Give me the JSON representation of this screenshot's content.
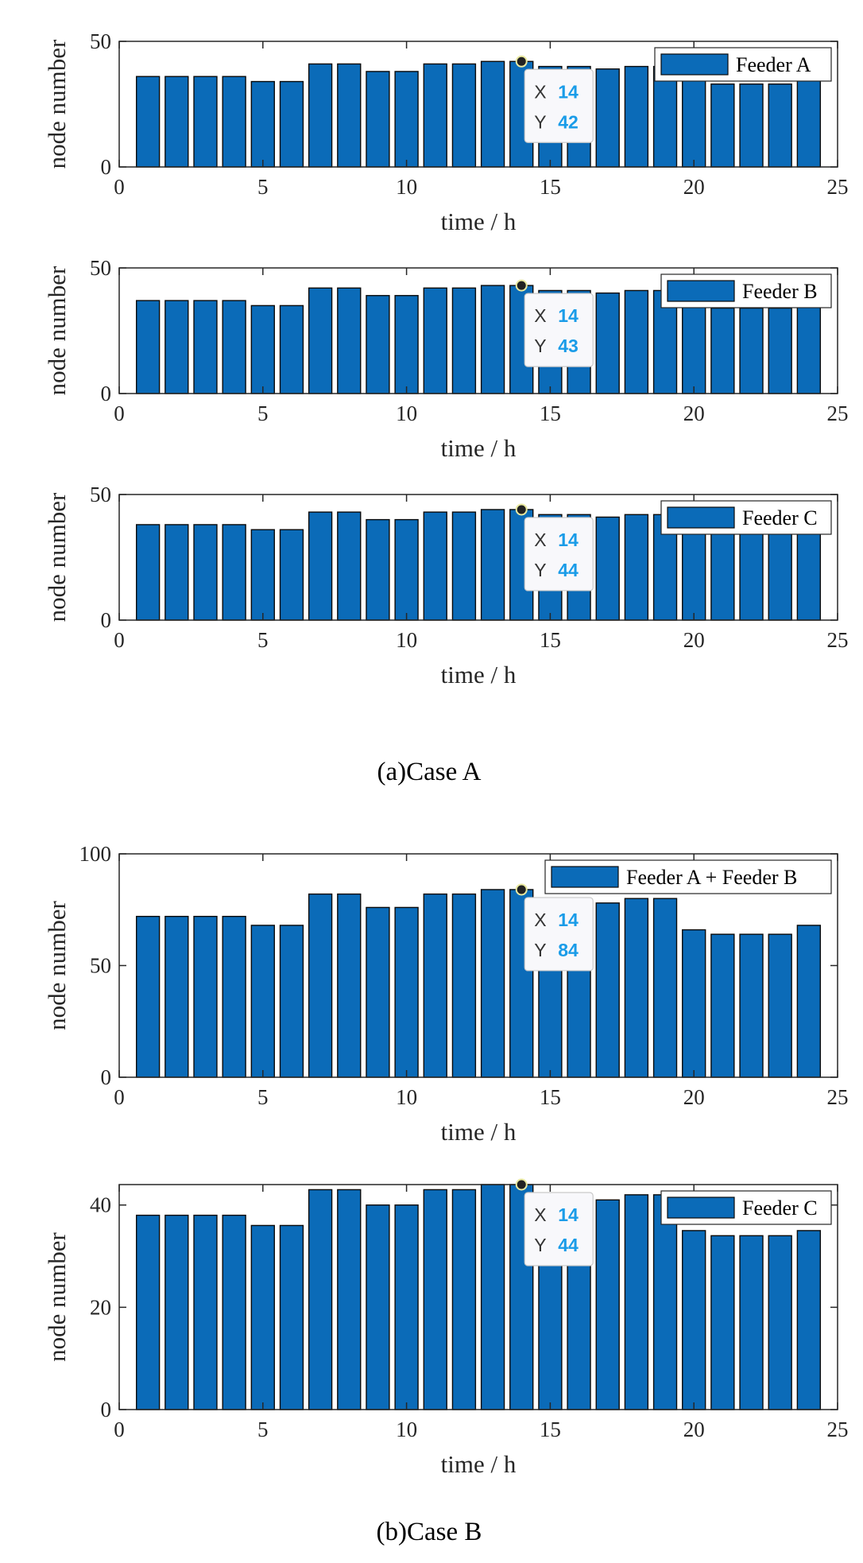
{
  "colors": {
    "bar": "#0b6bb8",
    "bar_edge": "#0a0a0a",
    "axis": "#262626",
    "datatip_value": "#1a9ce8"
  },
  "captions": {
    "case_a": "(a)Case A",
    "case_b": "(b)Case B"
  },
  "chart_data": [
    {
      "type": "bar",
      "group": "case_a",
      "title": "",
      "xlabel": "time / h",
      "ylabel": "node number",
      "xlim": [
        0,
        25
      ],
      "ylim": [
        0,
        50
      ],
      "xticks": [
        "0",
        "5",
        "10",
        "15",
        "20",
        "25"
      ],
      "yticks": [
        "0",
        "50"
      ],
      "legend": "Feeder A",
      "legend_position": "top-right",
      "x": [
        1,
        2,
        3,
        4,
        5,
        6,
        7,
        8,
        9,
        10,
        11,
        12,
        13,
        14,
        15,
        16,
        17,
        18,
        19,
        20,
        21,
        22,
        23,
        24
      ],
      "values": [
        36,
        36,
        36,
        36,
        34,
        34,
        41,
        41,
        38,
        38,
        41,
        41,
        42,
        42,
        40,
        40,
        39,
        40,
        40,
        35,
        33,
        33,
        33,
        35
      ],
      "datatip": {
        "x": 14,
        "y": 42,
        "x_key": "X",
        "y_key": "Y",
        "x_text": "14",
        "y_text": "42"
      }
    },
    {
      "type": "bar",
      "group": "case_a",
      "title": "",
      "xlabel": "time / h",
      "ylabel": "node number",
      "xlim": [
        0,
        25
      ],
      "ylim": [
        0,
        50
      ],
      "xticks": [
        "0",
        "5",
        "10",
        "15",
        "20",
        "25"
      ],
      "yticks": [
        "0",
        "50"
      ],
      "legend": "Feeder B",
      "legend_position": "top-right",
      "x": [
        1,
        2,
        3,
        4,
        5,
        6,
        7,
        8,
        9,
        10,
        11,
        12,
        13,
        14,
        15,
        16,
        17,
        18,
        19,
        20,
        21,
        22,
        23,
        24
      ],
      "values": [
        37,
        37,
        37,
        37,
        35,
        35,
        42,
        42,
        39,
        39,
        42,
        42,
        43,
        43,
        41,
        41,
        40,
        41,
        41,
        36,
        34,
        34,
        34,
        36
      ],
      "datatip": {
        "x": 14,
        "y": 43,
        "x_key": "X",
        "y_key": "Y",
        "x_text": "14",
        "y_text": "43"
      }
    },
    {
      "type": "bar",
      "group": "case_a",
      "title": "",
      "xlabel": "time / h",
      "ylabel": "node number",
      "xlim": [
        0,
        25
      ],
      "ylim": [
        0,
        50
      ],
      "xticks": [
        "0",
        "5",
        "10",
        "15",
        "20",
        "25"
      ],
      "yticks": [
        "0",
        "50"
      ],
      "legend": "Feeder C",
      "legend_position": "top-right",
      "x": [
        1,
        2,
        3,
        4,
        5,
        6,
        7,
        8,
        9,
        10,
        11,
        12,
        13,
        14,
        15,
        16,
        17,
        18,
        19,
        20,
        21,
        22,
        23,
        24
      ],
      "values": [
        38,
        38,
        38,
        38,
        36,
        36,
        43,
        43,
        40,
        40,
        43,
        43,
        44,
        44,
        42,
        42,
        41,
        42,
        42,
        37,
        35,
        35,
        35,
        37
      ],
      "datatip": {
        "x": 14,
        "y": 44,
        "x_key": "X",
        "y_key": "Y",
        "x_text": "14",
        "y_text": "44"
      }
    },
    {
      "type": "bar",
      "group": "case_b",
      "title": "",
      "xlabel": "time / h",
      "ylabel": "node number",
      "xlim": [
        0,
        25
      ],
      "ylim": [
        0,
        100
      ],
      "xticks": [
        "0",
        "5",
        "10",
        "15",
        "20",
        "25"
      ],
      "yticks": [
        "0",
        "50",
        "100"
      ],
      "legend": "Feeder A + Feeder B",
      "legend_position": "top-right",
      "x": [
        1,
        2,
        3,
        4,
        5,
        6,
        7,
        8,
        9,
        10,
        11,
        12,
        13,
        14,
        15,
        16,
        17,
        18,
        19,
        20,
        21,
        22,
        23,
        24
      ],
      "values": [
        72,
        72,
        72,
        72,
        68,
        68,
        82,
        82,
        76,
        76,
        82,
        82,
        84,
        84,
        80,
        80,
        78,
        80,
        80,
        66,
        64,
        64,
        64,
        68
      ],
      "datatip": {
        "x": 14,
        "y": 84,
        "x_key": "X",
        "y_key": "Y",
        "x_text": "14",
        "y_text": "84"
      }
    },
    {
      "type": "bar",
      "group": "case_b",
      "title": "",
      "xlabel": "time / h",
      "ylabel": "node number",
      "xlim": [
        0,
        25
      ],
      "ylim": [
        0,
        44
      ],
      "xticks": [
        "0",
        "5",
        "10",
        "15",
        "20",
        "25"
      ],
      "yticks": [
        "0",
        "20",
        "40"
      ],
      "legend": "Feeder C",
      "legend_position": "top-right",
      "x": [
        1,
        2,
        3,
        4,
        5,
        6,
        7,
        8,
        9,
        10,
        11,
        12,
        13,
        14,
        15,
        16,
        17,
        18,
        19,
        20,
        21,
        22,
        23,
        24
      ],
      "values": [
        38,
        38,
        38,
        38,
        36,
        36,
        43,
        43,
        40,
        40,
        43,
        43,
        44,
        44,
        42,
        42,
        41,
        42,
        42,
        35,
        34,
        34,
        34,
        35
      ],
      "datatip": {
        "x": 14,
        "y": 44,
        "x_key": "X",
        "y_key": "Y",
        "x_text": "14",
        "y_text": "44"
      }
    }
  ]
}
